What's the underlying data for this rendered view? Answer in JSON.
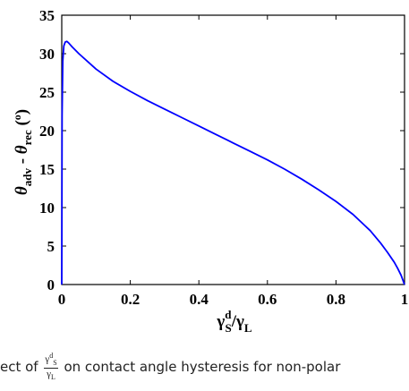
{
  "chart_data": {
    "type": "line",
    "xlabel": "γSd/γL",
    "ylabel": "θadv - θrec (o)",
    "xlim": [
      0,
      1
    ],
    "ylim": [
      0,
      35
    ],
    "x_ticks": [
      "0",
      "0.2",
      "0.4",
      "0.6",
      "0.8",
      "1"
    ],
    "y_ticks": [
      "0",
      "5",
      "10",
      "15",
      "20",
      "25",
      "30",
      "35"
    ],
    "grid": false,
    "series": [
      {
        "color": "#0000ff",
        "x": [
          0,
          0.001,
          0.003,
          0.006,
          0.01,
          0.015,
          0.02,
          0.03,
          0.05,
          0.08,
          0.1,
          0.15,
          0.2,
          0.25,
          0.3,
          0.35,
          0.4,
          0.45,
          0.5,
          0.55,
          0.6,
          0.65,
          0.7,
          0.75,
          0.8,
          0.85,
          0.9,
          0.93,
          0.95,
          0.97,
          0.98,
          0.99,
          0.995,
          1.0
        ],
        "y": [
          0,
          22,
          29,
          31,
          31.5,
          31.6,
          31.4,
          30.9,
          30.0,
          28.8,
          28.0,
          26.4,
          25.1,
          23.9,
          22.8,
          21.7,
          20.6,
          19.5,
          18.4,
          17.3,
          16.2,
          15.0,
          13.7,
          12.3,
          10.8,
          9.1,
          7.0,
          5.4,
          4.2,
          2.9,
          2.1,
          1.2,
          0.6,
          0
        ]
      }
    ]
  },
  "caption": {
    "prefix": "ect of",
    "frac_num": "γSd",
    "frac_den": "γL",
    "suffix": "on contact angle hysteresis for non-polar"
  }
}
